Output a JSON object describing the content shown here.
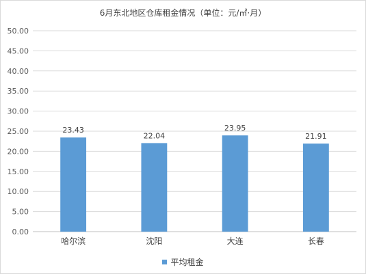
{
  "chart_data": {
    "type": "bar",
    "title": "6月东北地区仓库租金情况（单位：元/㎡·月）",
    "categories": [
      "哈尔滨",
      "沈阳",
      "大连",
      "长春"
    ],
    "series": [
      {
        "name": "平均租金",
        "values": [
          23.43,
          22.04,
          23.95,
          21.91
        ],
        "color": "#5b9bd5"
      }
    ],
    "ylim": [
      0,
      50
    ],
    "yticks": [
      "0.00",
      "5.00",
      "10.00",
      "15.00",
      "20.00",
      "25.00",
      "30.00",
      "35.00",
      "40.00",
      "45.00",
      "50.00"
    ],
    "data_labels": [
      "23.43",
      "22.04",
      "23.95",
      "21.91"
    ],
    "grid": true,
    "legend_position": "bottom"
  }
}
